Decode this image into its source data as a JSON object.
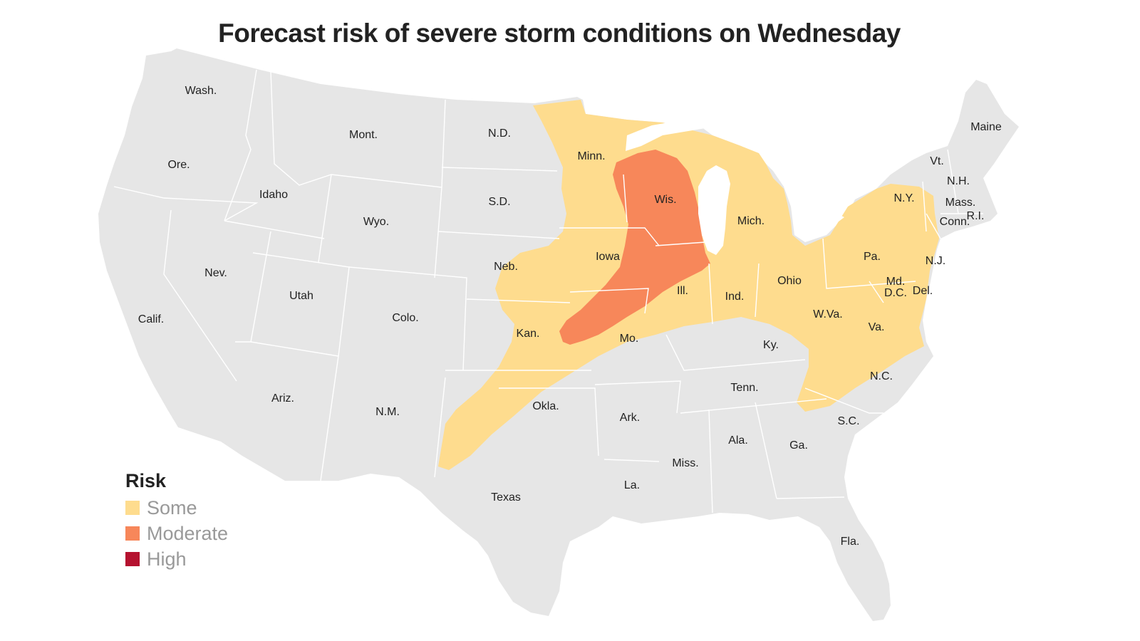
{
  "title": "Forecast risk of severe storm conditions on Wednesday",
  "colors": {
    "land": "#e6e6e6",
    "border": "#ffffff",
    "some": "#fedc8e",
    "moderate": "#f7875a",
    "high": "#b5122f"
  },
  "legend": {
    "title": "Risk",
    "items": [
      {
        "label": "Some",
        "color": "#fedc8e"
      },
      {
        "label": "Moderate",
        "color": "#f7875a"
      },
      {
        "label": "High",
        "color": "#b5122f"
      }
    ]
  },
  "states": [
    "Wash.",
    "Ore.",
    "Calif.",
    "Idaho",
    "Nev.",
    "Mont.",
    "Wyo.",
    "Utah",
    "Ariz.",
    "Colo.",
    "N.M.",
    "N.D.",
    "S.D.",
    "Neb.",
    "Kan.",
    "Okla.",
    "Texas",
    "Minn.",
    "Iowa",
    "Mo.",
    "Ark.",
    "La.",
    "Wis.",
    "Ill.",
    "Mich.",
    "Ind.",
    "Ohio",
    "Ky.",
    "Tenn.",
    "Miss.",
    "Ala.",
    "Ga.",
    "Fla.",
    "S.C.",
    "N.C.",
    "Va.",
    "W.Va.",
    "Pa.",
    "N.Y.",
    "Vt.",
    "N.H.",
    "Maine",
    "Mass.",
    "R.I.",
    "Conn.",
    "N.J.",
    "Del.",
    "Md.",
    "D.C."
  ]
}
